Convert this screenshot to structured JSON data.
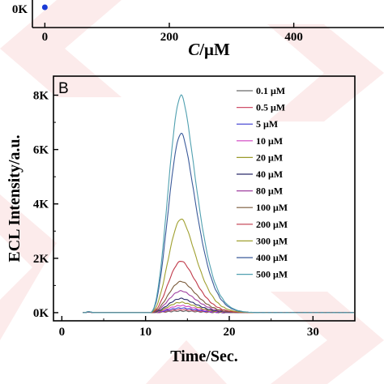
{
  "watermark_color": "#f6c5c5",
  "chart_data": [
    {
      "type": "scatter",
      "xlabel_italic": "C",
      "xlabel_rest": "/μM",
      "x_ticks": [
        "0",
        "200",
        "400"
      ],
      "y_ticks": [
        "0K"
      ],
      "xlim": [
        -20,
        545
      ],
      "points": [
        {
          "x": 0,
          "y": 0,
          "color": "#1a3bd6"
        }
      ]
    },
    {
      "type": "line",
      "panel_label": "B",
      "xlabel": "Time/Sec.",
      "ylabel": "ECL Intensity/a.u.",
      "xlim": [
        -1,
        35
      ],
      "ylim": [
        -300,
        8700
      ],
      "x_ticks": [
        0,
        10,
        20,
        30
      ],
      "x_tick_labels": [
        "0",
        "10",
        "20",
        "30"
      ],
      "y_ticks": [
        0,
        2000,
        4000,
        6000,
        8000
      ],
      "y_tick_labels": [
        "0K",
        "2K",
        "4K",
        "6K",
        "8K"
      ],
      "peak_time": 14.3,
      "series": [
        {
          "name": "0.1 μM",
          "color": "#6b6b6b",
          "peak": 60
        },
        {
          "name": "0.5 μM",
          "color": "#d0506a",
          "peak": 110
        },
        {
          "name": "5 μM",
          "color": "#3a3ad0",
          "peak": 170
        },
        {
          "name": "10 μM",
          "color": "#d040c0",
          "peak": 260
        },
        {
          "name": "20 μM",
          "color": "#9a9a2a",
          "peak": 380
        },
        {
          "name": "40 μM",
          "color": "#2a2a6a",
          "peak": 520
        },
        {
          "name": "80 μM",
          "color": "#a040a0",
          "peak": 800
        },
        {
          "name": "100 μM",
          "color": "#7a5a3a",
          "peak": 1150
        },
        {
          "name": "200 μM",
          "color": "#c03a4a",
          "peak": 1900
        },
        {
          "name": "300 μM",
          "color": "#a0a030",
          "peak": 3450
        },
        {
          "name": "400 μM",
          "color": "#3a5a9a",
          "peak": 6600
        },
        {
          "name": "500 μM",
          "color": "#50a0b0",
          "peak": 8000
        }
      ]
    }
  ]
}
